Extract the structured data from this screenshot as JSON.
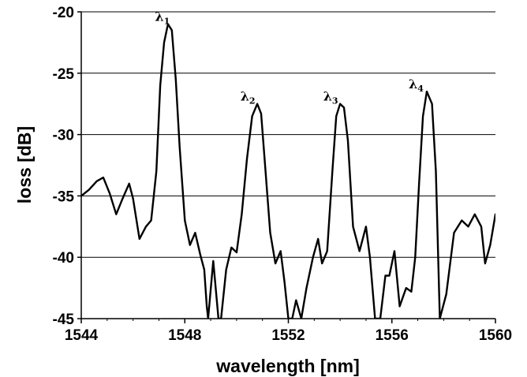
{
  "chart_data": {
    "type": "line",
    "xlabel": "wavelength [nm]",
    "ylabel": "loss [dB]",
    "xlim": [
      1544,
      1560
    ],
    "ylim": [
      -45,
      -20
    ],
    "xticks": [
      1544,
      1548,
      1552,
      1556,
      1560
    ],
    "yticks": [
      -20,
      -25,
      -30,
      -35,
      -40,
      -45
    ],
    "grid": "horizontal",
    "legend": "none",
    "line_color": "#000000",
    "series": [
      {
        "x": [
          1544.0,
          1544.3,
          1544.6,
          1544.85,
          1545.1,
          1545.35,
          1545.6,
          1545.85,
          1546.0,
          1546.25,
          1546.5,
          1546.7,
          1546.9,
          1547.05,
          1547.2,
          1547.35,
          1547.5,
          1547.65,
          1547.8,
          1548.0,
          1548.2,
          1548.4,
          1548.6,
          1548.75,
          1548.85,
          1548.9,
          1549.1,
          1549.3,
          1549.4,
          1549.6,
          1549.8,
          1550.0,
          1550.2,
          1550.4,
          1550.6,
          1550.8,
          1550.95,
          1551.1,
          1551.3,
          1551.5,
          1551.7,
          1551.85,
          1552.0,
          1552.15,
          1552.3,
          1552.5,
          1552.7,
          1552.95,
          1553.15,
          1553.3,
          1553.5,
          1553.7,
          1553.85,
          1554.0,
          1554.15,
          1554.3,
          1554.5,
          1554.75,
          1555.0,
          1555.15,
          1555.35,
          1555.55,
          1555.75,
          1555.9,
          1556.1,
          1556.3,
          1556.55,
          1556.75,
          1556.9,
          1557.05,
          1557.2,
          1557.35,
          1557.55,
          1557.7,
          1557.85,
          1558.1,
          1558.4,
          1558.7,
          1558.95,
          1559.2,
          1559.45,
          1559.6,
          1559.8,
          1560.0
        ],
        "y": [
          -35.0,
          -34.5,
          -33.8,
          -33.5,
          -34.8,
          -36.5,
          -35.2,
          -34.0,
          -35.2,
          -38.5,
          -37.5,
          -37.0,
          -33.0,
          -26.0,
          -22.5,
          -21.0,
          -21.5,
          -25.5,
          -31.0,
          -37.0,
          -39.0,
          -38.0,
          -39.8,
          -41.0,
          -44.0,
          -45.0,
          -40.3,
          -45.0,
          -45.0,
          -41.0,
          -39.2,
          -39.6,
          -36.5,
          -32.0,
          -28.5,
          -27.5,
          -28.3,
          -32.5,
          -38.0,
          -40.5,
          -39.5,
          -42.0,
          -45.0,
          -45.0,
          -43.5,
          -45.0,
          -42.5,
          -40.0,
          -38.5,
          -40.5,
          -39.5,
          -33.0,
          -28.5,
          -27.5,
          -27.8,
          -30.5,
          -37.5,
          -39.5,
          -37.5,
          -40.0,
          -45.0,
          -45.0,
          -41.5,
          -41.5,
          -39.5,
          -44.0,
          -42.5,
          -42.8,
          -40.0,
          -34.0,
          -28.5,
          -26.5,
          -27.5,
          -33.0,
          -45.0,
          -43.0,
          -38.0,
          -37.0,
          -37.5,
          -36.5,
          -37.5,
          -40.5,
          -39.0,
          -36.5
        ]
      }
    ],
    "annotations": [
      {
        "base": "λ",
        "sub": "1",
        "x": 1547.5,
        "y": -21.0
      },
      {
        "base": "λ",
        "sub": "2",
        "x": 1550.8,
        "y": -27.5
      },
      {
        "base": "λ",
        "sub": "3",
        "x": 1554.0,
        "y": -27.5
      },
      {
        "base": "λ",
        "sub": "4",
        "x": 1557.3,
        "y": -26.5
      }
    ]
  }
}
